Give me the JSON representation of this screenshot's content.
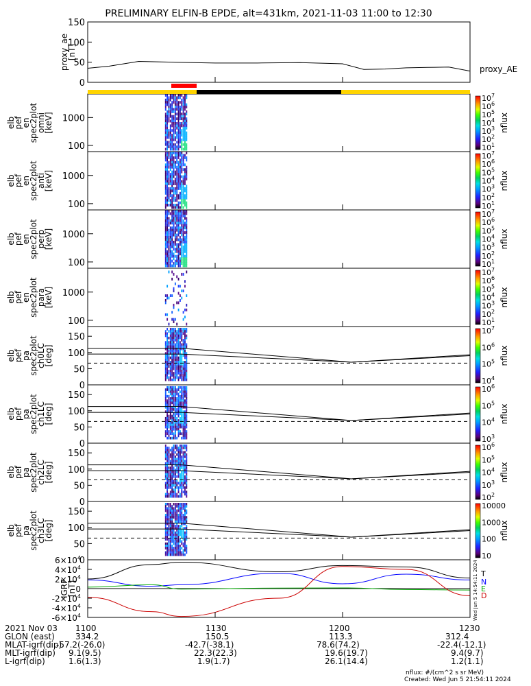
{
  "title": "PRELIMINARY ELFIN-B EPDE, alt=431km, 2021-11-03 11:00 to 12:30",
  "colors": {
    "state_bar_yellow": "#ffd400",
    "state_bar_black": "#000000",
    "science_marker": "#ff0000",
    "N": "#0000ff",
    "E": "#00aa00",
    "D": "#cc0000",
    "T": "#000000"
  },
  "chart_data": [
    {
      "type": "line",
      "panel": "proxy_ae",
      "ylabel_lines": [
        "proxy_ae",
        "[nT]"
      ],
      "ylim": [
        0,
        150
      ],
      "yticks": [
        0,
        50,
        100,
        150
      ],
      "legend": "proxy_AE",
      "x_min": [
        0,
        5,
        12,
        20,
        30,
        40,
        50,
        60,
        65,
        70,
        75,
        80,
        85,
        90
      ],
      "values": [
        35,
        40,
        52,
        50,
        48,
        48,
        49,
        46,
        32,
        33,
        36,
        37,
        38,
        28
      ]
    },
    {
      "type": "heatmap",
      "panel": "omni",
      "ylabel_lines": [
        "elb",
        "pef",
        "en",
        "spec2plot",
        "omni",
        "[keV]"
      ],
      "scale": "log",
      "yticks": [
        "100",
        "1000"
      ],
      "ylim": [
        60,
        7000
      ],
      "colorbar": {
        "label": "nflux",
        "ticks": [
          "10",
          "10",
          "10",
          "10",
          "10",
          "10",
          "10"
        ],
        "exps": [
          "1",
          "2",
          "3",
          "4",
          "5",
          "6",
          "7"
        ]
      }
    },
    {
      "type": "heatmap",
      "panel": "anti",
      "ylabel_lines": [
        "elb",
        "pef",
        "en",
        "spec2plot",
        "anti",
        "[keV]"
      ],
      "scale": "log",
      "yticks": [
        "100",
        "1000"
      ],
      "ylim": [
        60,
        7000
      ],
      "colorbar": {
        "label": "nflux",
        "ticks": [
          "10",
          "10",
          "10",
          "10",
          "10",
          "10",
          "10"
        ],
        "exps": [
          "1",
          "2",
          "3",
          "4",
          "5",
          "6",
          "7"
        ]
      }
    },
    {
      "type": "heatmap",
      "panel": "perp",
      "ylabel_lines": [
        "elb",
        "pef",
        "en",
        "spec2plot",
        "perp",
        "[keV]"
      ],
      "scale": "log",
      "yticks": [
        "100",
        "1000"
      ],
      "ylim": [
        60,
        7000
      ],
      "colorbar": {
        "label": "nflux",
        "ticks": [
          "10",
          "10",
          "10",
          "10",
          "10",
          "10",
          "10"
        ],
        "exps": [
          "1",
          "2",
          "3",
          "4",
          "5",
          "6",
          "7"
        ]
      }
    },
    {
      "type": "heatmap",
      "panel": "para",
      "ylabel_lines": [
        "elb",
        "pef",
        "en",
        "spec2plot",
        "para",
        "[keV]"
      ],
      "scale": "log",
      "yticks": [
        "100",
        "1000"
      ],
      "ylim": [
        60,
        7000
      ],
      "colorbar": {
        "label": "nflux",
        "ticks": [
          "10",
          "10",
          "10",
          "10",
          "10",
          "10",
          "10"
        ],
        "exps": [
          "1",
          "2",
          "3",
          "4",
          "5",
          "6",
          "7"
        ]
      }
    },
    {
      "type": "heatmap",
      "panel": "ch0LC",
      "ylabel_lines": [
        "elb",
        "pef",
        "pa",
        "spec2plot",
        "ch0LC",
        "[deg]"
      ],
      "ylim": [
        0,
        180
      ],
      "yticks": [
        "0",
        "50",
        "100",
        "150"
      ],
      "colorbar": {
        "label": "nflux",
        "ticks": [
          "10",
          "10",
          "10",
          "10"
        ],
        "exps": [
          "4",
          "5",
          "6",
          "7"
        ]
      }
    },
    {
      "type": "heatmap",
      "panel": "ch1LC",
      "ylabel_lines": [
        "elb",
        "pef",
        "pa",
        "spec2plot",
        "ch1LC",
        "[deg]"
      ],
      "ylim": [
        0,
        180
      ],
      "yticks": [
        "0",
        "50",
        "100",
        "150"
      ],
      "colorbar": {
        "label": "nflux",
        "ticks": [
          "10",
          "10",
          "10",
          "10"
        ],
        "exps": [
          "3",
          "4",
          "5",
          "6"
        ]
      }
    },
    {
      "type": "heatmap",
      "panel": "ch2LC",
      "ylabel_lines": [
        "elb",
        "pef",
        "pa",
        "spec2plot",
        "ch2LC",
        "[deg]"
      ],
      "ylim": [
        0,
        180
      ],
      "yticks": [
        "0",
        "50",
        "100",
        "150"
      ],
      "colorbar": {
        "label": "nflux",
        "ticks": [
          "10",
          "10",
          "10",
          "10",
          "10"
        ],
        "exps": [
          "2",
          "3",
          "4",
          "5",
          "6"
        ]
      }
    },
    {
      "type": "heatmap",
      "panel": "ch3LC",
      "ylabel_lines": [
        "elb",
        "pef",
        "pa",
        "spec2plot",
        "ch3LC",
        "[deg]"
      ],
      "ylim": [
        0,
        180
      ],
      "yticks": [
        "0",
        "50",
        "100",
        "150"
      ],
      "colorbar": {
        "label": "nflux",
        "ticks": [
          "10",
          "100",
          "1000",
          "10000"
        ],
        "exps": [
          "",
          "",
          "",
          ""
        ]
      }
    },
    {
      "type": "line",
      "panel": "igrf",
      "ylabel_lines": [
        "IGRF",
        "[nT]"
      ],
      "ylim": [
        -60000,
        60000
      ],
      "yticks": [
        "-6×10",
        "-4×10",
        "-2×10",
        "0",
        "2×10",
        "4×10",
        "6×10"
      ],
      "ytick_exp": "4",
      "legend": [
        "T",
        "N",
        "E",
        "D"
      ],
      "x_min": [
        0,
        15,
        22,
        45,
        60,
        75,
        90
      ],
      "series": [
        {
          "name": "T",
          "values": [
            20000,
            50000,
            55000,
            35000,
            48000,
            45000,
            22000
          ]
        },
        {
          "name": "N",
          "values": [
            18000,
            5000,
            8000,
            32000,
            10000,
            30000,
            18000
          ]
        },
        {
          "name": "E",
          "values": [
            3000,
            8000,
            -1000,
            1000,
            1500,
            -2000,
            -3000
          ]
        },
        {
          "name": "D",
          "values": [
            -18000,
            -48000,
            -58000,
            -20000,
            46000,
            40000,
            -15000
          ]
        }
      ]
    }
  ],
  "side_label": "Wed Jun  5 14:54:11 2024",
  "ephemeris": {
    "rows": [
      [
        "2021 Nov 03",
        "1100",
        "1130",
        "1200",
        "1230"
      ],
      [
        "GLON (east)",
        "334.2",
        "150.5",
        "113.3",
        "312.4"
      ],
      [
        "MLAT-igrf(dip)",
        "-57.2(-26.0)",
        "-42.7(-38.1)",
        "78.6(74.2)",
        "-22.4(-12.1)"
      ],
      [
        "MLT-igrf(dip)",
        "9.1(9.5)",
        "22.3(22.3)",
        "19.6(19.7)",
        "9.4(9.7)"
      ],
      [
        "L-igrf(dip)",
        "1.6(1.3)",
        "1.9(1.7)",
        "26.1(14.4)",
        "1.2(1.1)"
      ]
    ]
  },
  "footer": {
    "units": "nflux: #/(cm^2 s sr MeV)",
    "created": "Created: Wed Jun  5 21:54:11 2024"
  }
}
